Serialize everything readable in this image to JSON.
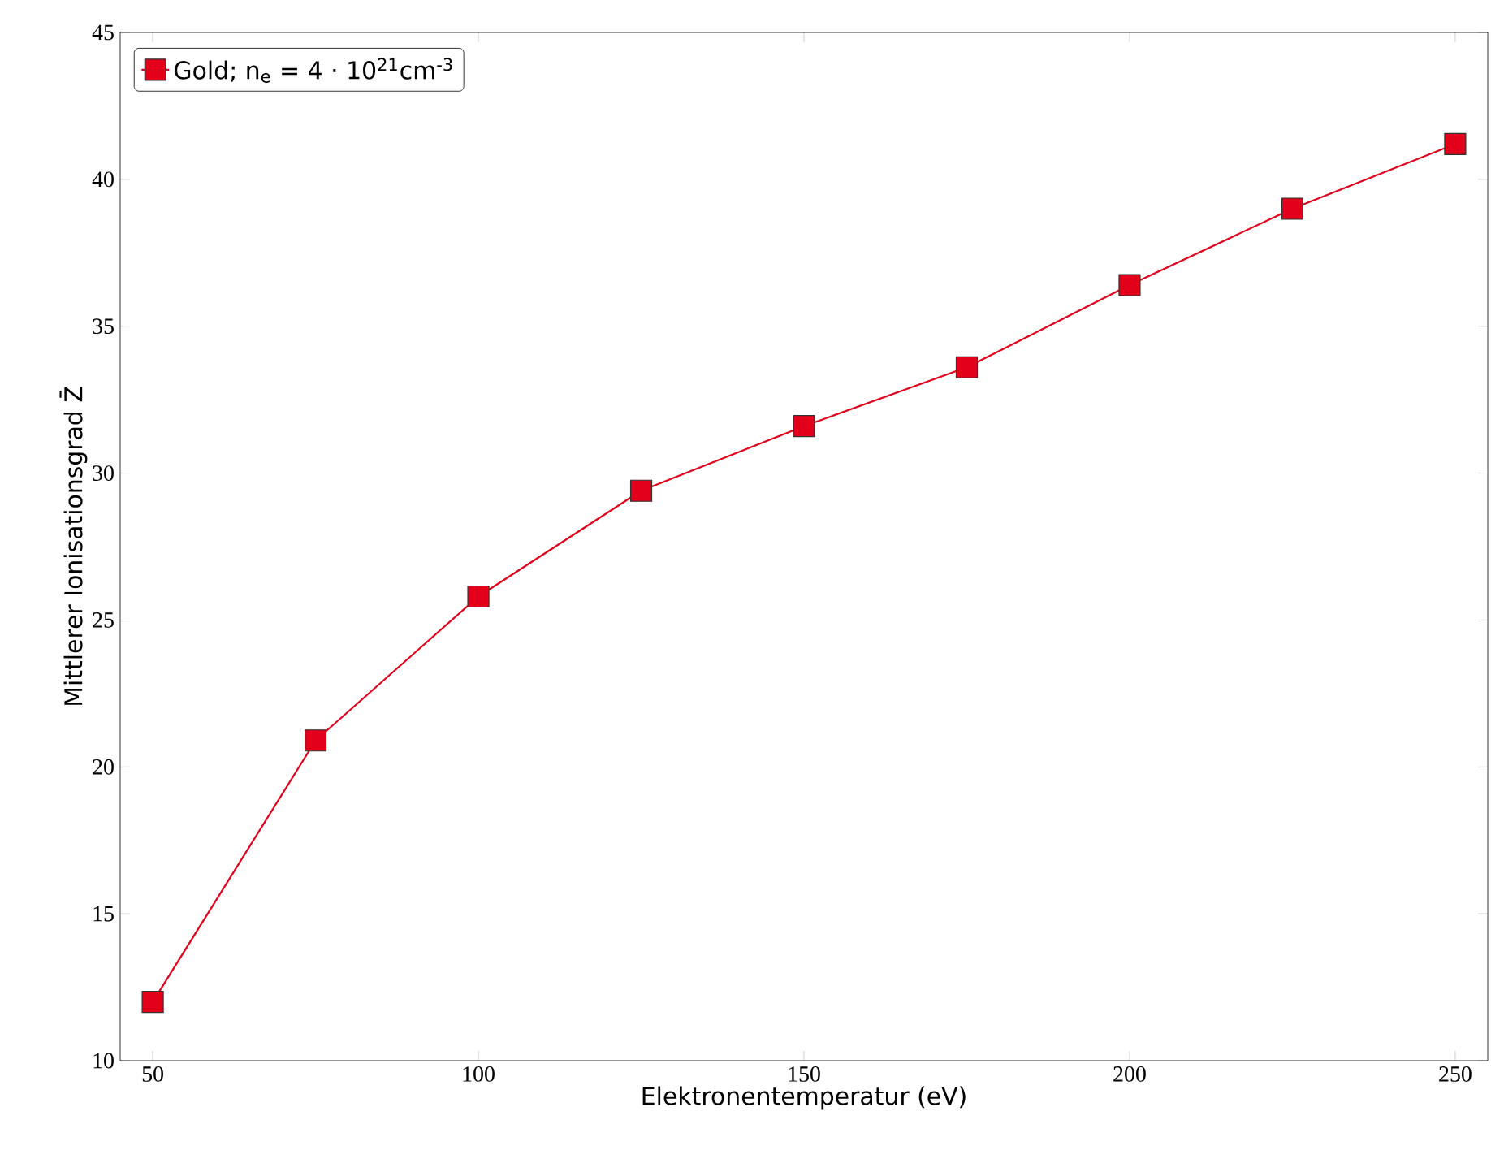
{
  "chart_data": {
    "type": "line",
    "xlabel": "Elektronentemperatur (eV)",
    "ylabel": "Mittlerer Ionisationsgrad Z̄",
    "x": [
      50,
      75,
      100,
      125,
      150,
      175,
      200,
      225,
      250
    ],
    "series": [
      {
        "name": "Gold; n$_{e}$ = 4 · 10$^{21}$cm$^{-3}$",
        "color": "#e2001a",
        "values": [
          12.0,
          20.9,
          25.8,
          29.4,
          31.6,
          33.6,
          36.4,
          39.0,
          41.2
        ]
      }
    ],
    "xlim": [
      45,
      255
    ],
    "ylim": [
      10,
      45
    ],
    "xticks": [
      50,
      100,
      150,
      200,
      250
    ],
    "yticks": [
      10,
      15,
      20,
      25,
      30,
      35,
      40,
      45
    ],
    "marker": "square",
    "line_style": "solid",
    "legend": "top left",
    "grid": false
  }
}
